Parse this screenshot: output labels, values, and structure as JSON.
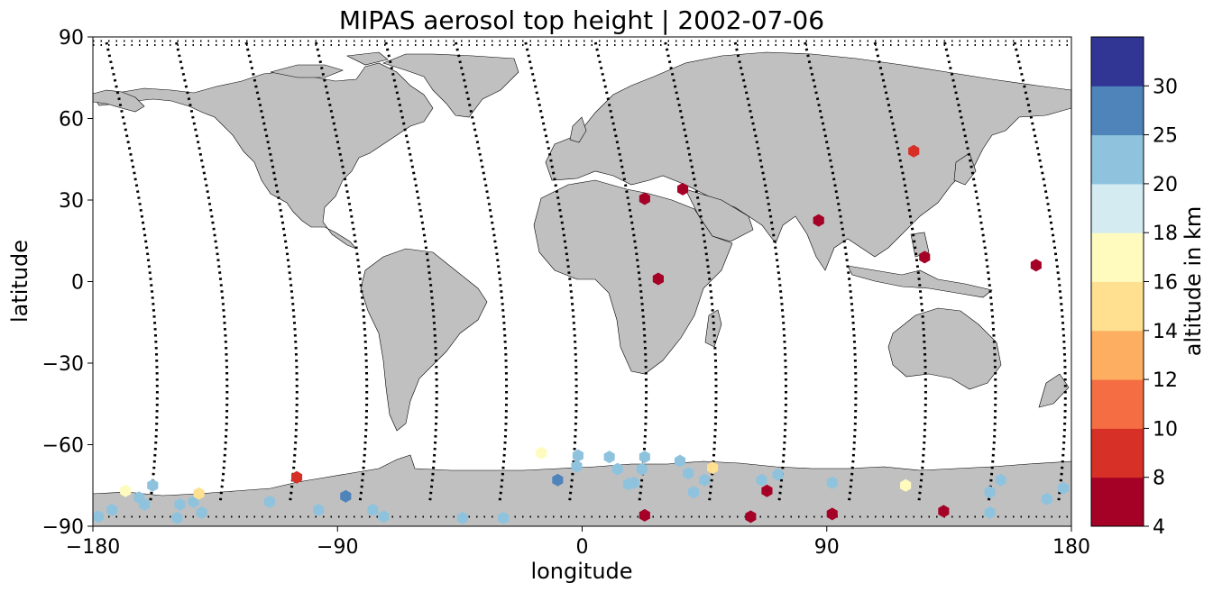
{
  "chart_data": {
    "type": "scatter",
    "title": "MIPAS aerosol top height | 2002-07-06",
    "xlabel": "longitude",
    "ylabel": "latitude",
    "xlim": [
      -180,
      180
    ],
    "ylim": [
      -90,
      90
    ],
    "xticks": [
      -180,
      -90,
      0,
      90,
      180
    ],
    "yticks": [
      -90,
      -60,
      -30,
      0,
      30,
      60,
      90
    ],
    "xtick_labels": [
      "−180",
      "−90",
      "0",
      "90",
      "180"
    ],
    "ytick_labels": [
      "−90",
      "−60",
      "−30",
      "0",
      "30",
      "60",
      "90"
    ],
    "background": "world map with grey land and white ocean",
    "land_color": "#c0c0c0",
    "colorbar": {
      "label": "altitude in km",
      "boundaries": [
        4,
        8,
        10,
        12,
        14,
        16,
        18,
        20,
        25,
        30
      ],
      "tick_labels": [
        "4",
        "8",
        "10",
        "12",
        "14",
        "16",
        "18",
        "20",
        "25",
        "30"
      ],
      "colors": [
        "#a50026",
        "#d73027",
        "#f46d43",
        "#fdae61",
        "#fee090",
        "#fffbbf",
        "#d4ebf2",
        "#8fc3dd",
        "#4f84bb",
        "#313695"
      ]
    },
    "series": [
      {
        "marker": "hexagon",
        "points": [
          {
            "lon": -178,
            "lat": -86.5,
            "alt": 22
          },
          {
            "lon": -173,
            "lat": -84,
            "alt": 22
          },
          {
            "lon": -168,
            "lat": -77,
            "alt": 17
          },
          {
            "lon": -163,
            "lat": -79.5,
            "alt": 22
          },
          {
            "lon": -161,
            "lat": -82,
            "alt": 22
          },
          {
            "lon": -158,
            "lat": -75,
            "alt": 22
          },
          {
            "lon": -149,
            "lat": -87,
            "alt": 22
          },
          {
            "lon": -148,
            "lat": -82,
            "alt": 22
          },
          {
            "lon": -143,
            "lat": -81,
            "alt": 22
          },
          {
            "lon": -141,
            "lat": -78,
            "alt": 15
          },
          {
            "lon": -140,
            "lat": -85,
            "alt": 22
          },
          {
            "lon": -115,
            "lat": -81,
            "alt": 22
          },
          {
            "lon": -105,
            "lat": -72,
            "alt": 9
          },
          {
            "lon": -97,
            "lat": -84,
            "alt": 22
          },
          {
            "lon": -87,
            "lat": -79,
            "alt": 27
          },
          {
            "lon": -77,
            "lat": -84,
            "alt": 22
          },
          {
            "lon": -73,
            "lat": -86.5,
            "alt": 22
          },
          {
            "lon": -44,
            "lat": -87,
            "alt": 22
          },
          {
            "lon": -29,
            "lat": -87,
            "alt": 22
          },
          {
            "lon": -15,
            "lat": -63,
            "alt": 17
          },
          {
            "lon": -9,
            "lat": -73,
            "alt": 27
          },
          {
            "lon": -2,
            "lat": -68,
            "alt": 22
          },
          {
            "lon": -1.5,
            "lat": -64,
            "alt": 22
          },
          {
            "lon": 10,
            "lat": -64.5,
            "alt": 22
          },
          {
            "lon": 13,
            "lat": -69,
            "alt": 22
          },
          {
            "lon": 17,
            "lat": -74.5,
            "alt": 22
          },
          {
            "lon": 19,
            "lat": -74,
            "alt": 22
          },
          {
            "lon": 22,
            "lat": -69,
            "alt": 22
          },
          {
            "lon": 23,
            "lat": -64.5,
            "alt": 22
          },
          {
            "lon": 23,
            "lat": -86,
            "alt": 6
          },
          {
            "lon": 23,
            "lat": 30.5,
            "alt": 6
          },
          {
            "lon": 28,
            "lat": 1,
            "alt": 6
          },
          {
            "lon": 37,
            "lat": 34,
            "alt": 6
          },
          {
            "lon": 36,
            "lat": -66,
            "alt": 22
          },
          {
            "lon": 39,
            "lat": -70.5,
            "alt": 22
          },
          {
            "lon": 41,
            "lat": -77.5,
            "alt": 22
          },
          {
            "lon": 45,
            "lat": -73,
            "alt": 22
          },
          {
            "lon": 48,
            "lat": -68.5,
            "alt": 15
          },
          {
            "lon": 62,
            "lat": -86.5,
            "alt": 6
          },
          {
            "lon": 66,
            "lat": -73,
            "alt": 22
          },
          {
            "lon": 68,
            "lat": -77,
            "alt": 6
          },
          {
            "lon": 72,
            "lat": -71,
            "alt": 22
          },
          {
            "lon": 87,
            "lat": 22.5,
            "alt": 6
          },
          {
            "lon": 92,
            "lat": -74,
            "alt": 22
          },
          {
            "lon": 92,
            "lat": -85.5,
            "alt": 6
          },
          {
            "lon": 119,
            "lat": -75,
            "alt": 17
          },
          {
            "lon": 122,
            "lat": 48,
            "alt": 9
          },
          {
            "lon": 126,
            "lat": 9,
            "alt": 6
          },
          {
            "lon": 133,
            "lat": -84.5,
            "alt": 6
          },
          {
            "lon": 150,
            "lat": -77.5,
            "alt": 22
          },
          {
            "lon": 150,
            "lat": -85,
            "alt": 22
          },
          {
            "lon": 154,
            "lat": -73,
            "alt": 22
          },
          {
            "lon": 167,
            "lat": 6,
            "alt": 6
          },
          {
            "lon": 171,
            "lat": -80,
            "alt": 22
          },
          {
            "lon": 177,
            "lat": -76,
            "alt": 22
          }
        ]
      }
    ]
  }
}
